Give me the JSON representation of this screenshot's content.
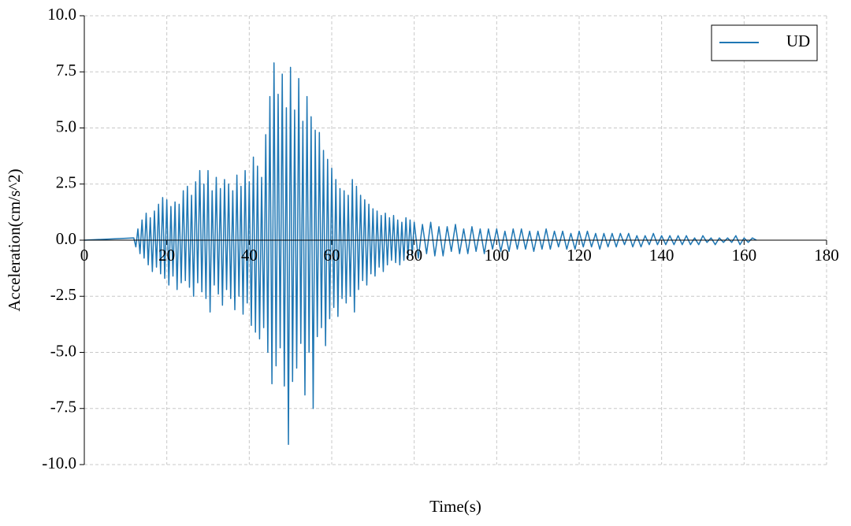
{
  "chart_data": {
    "type": "line",
    "xlabel": "Time(s)",
    "ylabel": "Acceleration(cm/s^2)",
    "xlim": [
      0,
      180
    ],
    "ylim": [
      -10,
      10
    ],
    "xticks": [
      0,
      20,
      40,
      60,
      80,
      100,
      120,
      140,
      160,
      180
    ],
    "yticks": [
      {
        "value": 10,
        "label": "10.0"
      },
      7.5,
      {
        "value": 5,
        "label": "5.0"
      },
      2.5,
      {
        "value": 0,
        "label": "0.0"
      },
      -2.5,
      {
        "value": -5,
        "label": "-5.0"
      },
      -7.5,
      {
        "value": -10,
        "label": "-10.0"
      }
    ],
    "grid": true,
    "legend": "upper right",
    "x": [
      0,
      12,
      12.5,
      13,
      13.5,
      14,
      14.5,
      15,
      15.5,
      16,
      16.5,
      17,
      17.5,
      18,
      18.5,
      19,
      19.5,
      20,
      20.5,
      21,
      21.5,
      22,
      22.5,
      23,
      23.5,
      24,
      24.5,
      25,
      25.5,
      26,
      26.5,
      27,
      27.5,
      28,
      28.5,
      29,
      29.5,
      30,
      30.5,
      31,
      31.5,
      32,
      32.5,
      33,
      33.5,
      34,
      34.5,
      35,
      35.5,
      36,
      36.5,
      37,
      37.5,
      38,
      38.5,
      39,
      39.5,
      40,
      40.5,
      41,
      41.5,
      42,
      42.5,
      43,
      43.5,
      44,
      44.5,
      45,
      45.5,
      46,
      46.5,
      47,
      47.5,
      48,
      48.5,
      49,
      49.5,
      50,
      50.5,
      51,
      51.5,
      52,
      52.5,
      53,
      53.5,
      54,
      54.5,
      55,
      55.5,
      56,
      56.5,
      57,
      57.5,
      58,
      58.5,
      59,
      59.5,
      60,
      60.5,
      61,
      61.5,
      62,
      62.5,
      63,
      63.5,
      64,
      64.5,
      65,
      65.5,
      66,
      66.5,
      67,
      67.5,
      68,
      68.5,
      69,
      69.5,
      70,
      70.5,
      71,
      71.5,
      72,
      72.5,
      73,
      73.5,
      74,
      74.5,
      75,
      75.5,
      76,
      76.5,
      77,
      77.5,
      78,
      78.5,
      79,
      79.5,
      80,
      81,
      82,
      83,
      84,
      85,
      86,
      87,
      88,
      89,
      90,
      91,
      92,
      93,
      94,
      95,
      96,
      97,
      98,
      99,
      100,
      101,
      102,
      103,
      104,
      105,
      106,
      107,
      108,
      109,
      110,
      111,
      112,
      113,
      114,
      115,
      116,
      117,
      118,
      119,
      120,
      121,
      122,
      123,
      124,
      125,
      126,
      127,
      128,
      129,
      130,
      131,
      132,
      133,
      134,
      135,
      136,
      137,
      138,
      139,
      140,
      141,
      142,
      143,
      144,
      145,
      146,
      147,
      148,
      149,
      150,
      151,
      152,
      153,
      154,
      155,
      156,
      157,
      158,
      159,
      160,
      161,
      162,
      163
    ],
    "series": [
      {
        "name": "UD",
        "color": "#1f77b4",
        "values": [
          0,
          0.1,
          -0.3,
          0.5,
          -0.6,
          0.9,
          -0.8,
          1.2,
          -1.1,
          1.0,
          -1.4,
          1.3,
          -1.2,
          1.6,
          -1.5,
          1.9,
          -1.7,
          1.8,
          -2.0,
          1.5,
          -1.6,
          1.7,
          -2.2,
          1.6,
          -1.9,
          2.2,
          -1.8,
          2.4,
          -2.1,
          2.0,
          -2.5,
          2.6,
          -1.9,
          3.1,
          -2.3,
          2.5,
          -2.6,
          3.1,
          -3.2,
          2.2,
          -2.0,
          2.8,
          -2.4,
          2.3,
          -2.9,
          2.7,
          -2.2,
          2.5,
          -2.6,
          2.2,
          -3.1,
          2.9,
          -2.5,
          2.4,
          -3.3,
          3.1,
          -2.8,
          2.6,
          -3.8,
          3.7,
          -4.1,
          3.3,
          -4.4,
          2.8,
          -3.9,
          4.7,
          -5.0,
          6.4,
          -6.4,
          7.9,
          -5.6,
          6.5,
          -4.8,
          7.4,
          -6.5,
          5.9,
          -9.1,
          7.7,
          -6.3,
          5.8,
          -5.7,
          7.2,
          -4.6,
          5.3,
          -6.9,
          6.4,
          -5.0,
          5.5,
          -7.5,
          4.9,
          -4.3,
          4.8,
          -3.9,
          4.0,
          -4.7,
          3.6,
          -3.5,
          3.2,
          -3.0,
          2.7,
          -3.4,
          2.3,
          -2.6,
          2.2,
          -2.8,
          2.0,
          -2.5,
          2.7,
          -3.2,
          2.4,
          -2.2,
          2.0,
          -1.8,
          1.8,
          -2.0,
          1.6,
          -1.5,
          1.4,
          -1.6,
          1.3,
          -1.2,
          1.1,
          -1.4,
          1.2,
          -1.1,
          1.0,
          -0.9,
          1.1,
          -1.0,
          0.9,
          -1.1,
          0.8,
          -0.9,
          1.0,
          -0.8,
          0.9,
          -0.7,
          0.8,
          -0.8,
          0.7,
          -0.6,
          0.8,
          -0.7,
          0.6,
          -0.7,
          0.6,
          -0.5,
          0.7,
          -0.6,
          0.5,
          -0.6,
          0.6,
          -0.5,
          0.5,
          -0.6,
          0.5,
          -0.4,
          0.5,
          -0.5,
          0.4,
          -0.5,
          0.5,
          -0.4,
          0.5,
          -0.4,
          0.4,
          -0.5,
          0.4,
          -0.4,
          0.5,
          -0.4,
          0.4,
          -0.3,
          0.4,
          -0.4,
          0.3,
          -0.4,
          0.4,
          -0.3,
          0.4,
          -0.3,
          0.3,
          -0.4,
          0.3,
          -0.3,
          0.3,
          -0.3,
          0.3,
          -0.2,
          0.3,
          -0.3,
          0.2,
          -0.3,
          0.2,
          -0.2,
          0.3,
          -0.2,
          0.2,
          -0.2,
          0.2,
          -0.2,
          0.2,
          -0.2,
          0.2,
          -0.2,
          0.1,
          -0.2,
          0.2,
          -0.1,
          0.1,
          -0.2,
          0.1,
          -0.1,
          0.1,
          -0.1,
          0.2,
          -0.2,
          0.1,
          -0.1,
          0.1,
          0
        ]
      }
    ]
  }
}
